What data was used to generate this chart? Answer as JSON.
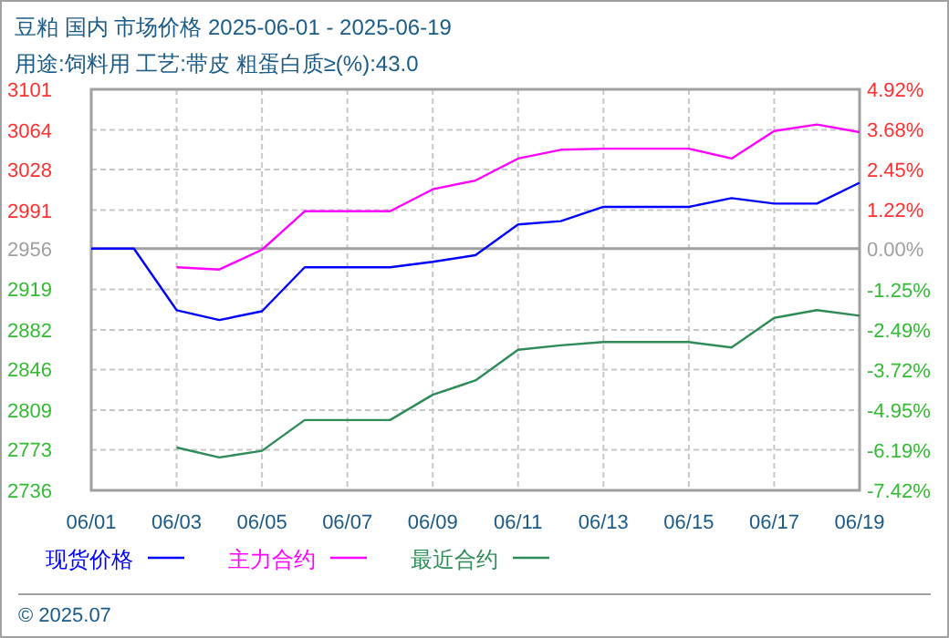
{
  "chart_data": {
    "type": "line",
    "title": "豆粕 国内 市场价格 2025-06-01 - 2025-06-19",
    "subtitle": "用途:饲料用 工艺:带皮 粗蛋白质≥(%):43.0",
    "xlim": [
      "2025-06-01",
      "2025-06-19"
    ],
    "xticks": [
      {
        "value": "2025-06-01",
        "label": "06/01"
      },
      {
        "value": "2025-06-03",
        "label": "06/03"
      },
      {
        "value": "2025-06-05",
        "label": "06/05"
      },
      {
        "value": "2025-06-07",
        "label": "06/07"
      },
      {
        "value": "2025-06-09",
        "label": "06/09"
      },
      {
        "value": "2025-06-11",
        "label": "06/11"
      },
      {
        "value": "2025-06-13",
        "label": "06/13"
      },
      {
        "value": "2025-06-15",
        "label": "06/15"
      },
      {
        "value": "2025-06-17",
        "label": "06/17"
      },
      {
        "value": "2025-06-19",
        "label": "06/19"
      }
    ],
    "ylim": [
      2736,
      3101
    ],
    "yticks": [
      2736,
      2773,
      2809,
      2846,
      2882,
      2919,
      2956,
      2991,
      3028,
      3064,
      3101
    ],
    "y2lim": [
      -7.42,
      4.92
    ],
    "y2ticks": [
      {
        "value": -7.42,
        "label": "-7.42%"
      },
      {
        "value": -6.19,
        "label": "-6.19%"
      },
      {
        "value": -4.95,
        "label": "-4.95%"
      },
      {
        "value": -3.72,
        "label": "-3.72%"
      },
      {
        "value": -2.49,
        "label": "-2.49%"
      },
      {
        "value": -1.25,
        "label": "-1.25%"
      },
      {
        "value": 0,
        "label": "0.00%"
      },
      {
        "value": 1.22,
        "label": "1.22%"
      },
      {
        "value": 2.45,
        "label": "2.45%"
      },
      {
        "value": 3.68,
        "label": "3.68%"
      },
      {
        "value": 4.92,
        "label": "4.92%"
      }
    ],
    "grid": true,
    "legend": "bottom",
    "ref_lines": [
      {
        "axis": "y",
        "value": 2956,
        "color": "#a0a0a0"
      }
    ],
    "annotations": [
      "© 2025.07"
    ],
    "series": [
      {
        "name": "现货价格",
        "color": "#0000ff",
        "x": [
          "2025-06-01",
          "2025-06-02",
          "2025-06-03",
          "2025-06-04",
          "2025-06-05",
          "2025-06-06",
          "2025-06-07",
          "2025-06-08",
          "2025-06-09",
          "2025-06-10",
          "2025-06-11",
          "2025-06-12",
          "2025-06-13",
          "2025-06-14",
          "2025-06-15",
          "2025-06-16",
          "2025-06-17",
          "2025-06-18",
          "2025-06-19"
        ],
        "values": [
          2956,
          2956,
          2900,
          2891,
          2899,
          2939,
          2939,
          2939,
          2944,
          2950,
          2978,
          2981,
          2994,
          2994,
          2994,
          3002,
          2997,
          2997,
          3016
        ]
      },
      {
        "name": "主力合约",
        "color": "#ff00ff",
        "x": [
          "2025-06-03",
          "2025-06-04",
          "2025-06-05",
          "2025-06-06",
          "2025-06-07",
          "2025-06-08",
          "2025-06-09",
          "2025-06-10",
          "2025-06-11",
          "2025-06-12",
          "2025-06-13",
          "2025-06-14",
          "2025-06-15",
          "2025-06-16",
          "2025-06-17",
          "2025-06-18",
          "2025-06-19"
        ],
        "values": [
          2939,
          2937,
          2955,
          2990,
          2990,
          2990,
          3010,
          3018,
          3038,
          3046,
          3047,
          3047,
          3047,
          3038,
          3063,
          3069,
          3062
        ]
      },
      {
        "name": "最近合约",
        "color": "#2e8b57",
        "x": [
          "2025-06-03",
          "2025-06-04",
          "2025-06-05",
          "2025-06-06",
          "2025-06-07",
          "2025-06-08",
          "2025-06-09",
          "2025-06-10",
          "2025-06-11",
          "2025-06-12",
          "2025-06-13",
          "2025-06-14",
          "2025-06-15",
          "2025-06-16",
          "2025-06-17",
          "2025-06-18",
          "2025-06-19"
        ],
        "values": [
          2775,
          2766,
          2772,
          2800,
          2800,
          2800,
          2823,
          2836,
          2864,
          2868,
          2871,
          2871,
          2871,
          2866,
          2893,
          2900,
          2895
        ]
      }
    ]
  }
}
